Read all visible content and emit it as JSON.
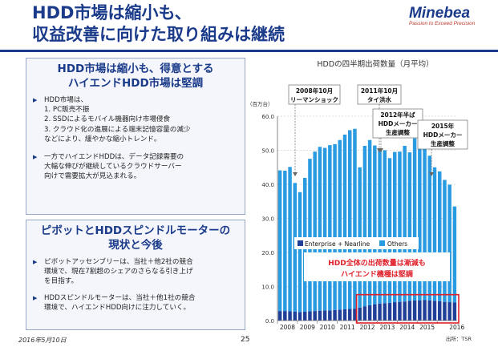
{
  "slide": {
    "title_line1": "HDD市場は縮小も、",
    "title_line2": "収益改善に向けた取り組みは継続",
    "brand": "Minebea",
    "brand_tagline": "Passion to Exceed Precision",
    "date": "2016年5月10日",
    "page": "25"
  },
  "box1": {
    "header_line1": "HDD市場は縮小も、得意とする",
    "header_line2": "ハイエンドHDD市場は堅調",
    "b1": "HDD市場は、",
    "b1_item1": "1. PC販売不振",
    "b1_item2": "2. SSDによるモバイル機器向け市場侵食",
    "b1_item3": "3. クラウド化の進展による端末記憶容量の減少",
    "b1_tail": "などにより、緩やかな縮小トレンド。",
    "b2_l1": "一方でハイエンドHDDは、データ記録需要の",
    "b2_l2": "大幅な伸びが継続しているクラウドサーバー",
    "b2_l3": "向けで需要拡大が見込まれる。"
  },
  "box2": {
    "header_line1": "ピボットとHDDスピンドルモーターの",
    "header_line2": "現状と今後",
    "b1_l1": "ピボットアッセンブリーは、当社＋他2社の競合",
    "b1_l2": "環境で、現在7割超のシェアのさらなる引き上げ",
    "b1_l3": "を目指す。",
    "b2_l1": "HDDスピンドルモーターは、当社＋他1社の競合",
    "b2_l2": "環境で、ハイエンドHDD向けに注力していく。"
  },
  "chart_data": {
    "type": "bar",
    "title": "HDDの四半期出荷数量（月平均）",
    "ylabel": "（百万台）",
    "ylim": [
      0,
      60
    ],
    "yticks": [
      "0.0",
      "10.0",
      "20.0",
      "30.0",
      "40.0",
      "50.0",
      "60.0"
    ],
    "year_labels": [
      "2008",
      "2009",
      "2010",
      "2011",
      "2012",
      "2013",
      "2014",
      "2015",
      "2016"
    ],
    "source": "出所：TSR",
    "legend_position": "bottom-center",
    "series": [
      {
        "name": "Enterprise + Nearline",
        "color": "#1f3f99",
        "values": [
          2.8,
          2.8,
          2.7,
          2.6,
          2.5,
          2.6,
          2.7,
          2.8,
          2.9,
          3.0,
          3.0,
          3.1,
          3.2,
          3.3,
          3.4,
          3.5,
          3.8,
          4.2,
          4.5,
          4.8,
          5.0,
          5.1,
          5.2,
          5.4,
          5.5,
          5.6,
          5.8,
          5.9,
          5.9,
          6.0,
          5.9,
          5.8,
          5.7,
          5.5,
          5.4,
          5.3
        ]
      },
      {
        "name": "Others",
        "color": "#2a9be0",
        "values": [
          41.3,
          41.2,
          42.4,
          37.8,
          35.2,
          39.3,
          44.8,
          46.8,
          48.1,
          47.7,
          48.5,
          48.7,
          49.8,
          51.3,
          52.5,
          52.8,
          41.2,
          47.1,
          48.5,
          46.6,
          45.1,
          44.9,
          42.5,
          44.1,
          44.1,
          45.7,
          43.6,
          47.6,
          47.3,
          45.1,
          42.5,
          39.2,
          38.1,
          35.8,
          34.5,
          28.2
        ]
      }
    ],
    "annotations": [
      {
        "text": "2008年10月\nリーマンショック"
      },
      {
        "text": "2011年10月\nタイ洪水"
      },
      {
        "text": "2012年半ば\nHDDメーカー\n生産調整"
      },
      {
        "text": "2015年\nHDDメーカー\n生産調整"
      }
    ],
    "callout": {
      "line1": "HDD全体の出荷数量は漸減も",
      "line2": "ハイエンド機種は堅調",
      "color": "#e0202a"
    }
  },
  "colors": {
    "primary": "#1a3a8a",
    "enterprise": "#1f3f99",
    "others": "#2a9be0",
    "highlight": "#e0202a"
  }
}
